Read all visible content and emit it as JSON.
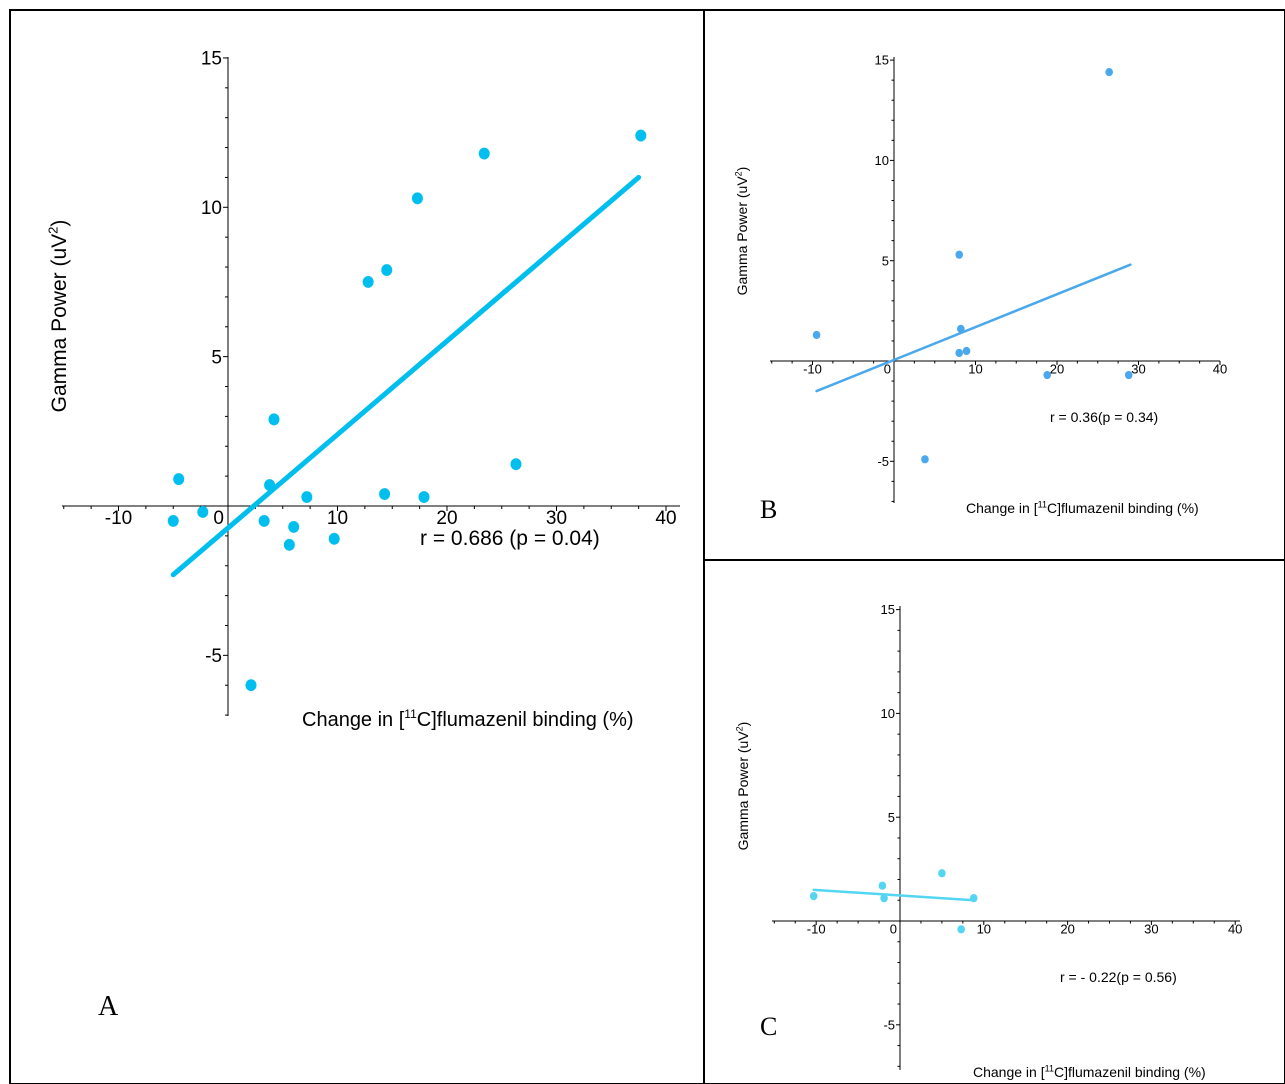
{
  "panels": {
    "a": {
      "label": "A"
    },
    "b": {
      "label": "B"
    },
    "c": {
      "label": "C"
    }
  },
  "chart_data": [
    {
      "panel": "A",
      "type": "scatter",
      "xlabel": "Change in [11C]flumazenil binding (%)",
      "ylabel": "Gamma Power (uV2)",
      "x_ticks": [
        -10,
        0,
        10,
        20,
        30,
        40
      ],
      "y_ticks": [
        -5,
        0,
        5,
        10,
        15
      ],
      "xlim": [
        -15,
        40
      ],
      "ylim": [
        -7,
        15
      ],
      "color": "#00bfef",
      "points": [
        {
          "x": -5,
          "y": -0.5
        },
        {
          "x": -4.5,
          "y": 0.9
        },
        {
          "x": -2.3,
          "y": -0.2
        },
        {
          "x": 2.1,
          "y": -6.0
        },
        {
          "x": 3.3,
          "y": -0.5
        },
        {
          "x": 3.8,
          "y": 0.7
        },
        {
          "x": 4.2,
          "y": 2.9
        },
        {
          "x": 5.6,
          "y": -1.3
        },
        {
          "x": 6.0,
          "y": -0.7
        },
        {
          "x": 7.2,
          "y": 0.3
        },
        {
          "x": 9.7,
          "y": -1.1
        },
        {
          "x": 12.8,
          "y": 7.5
        },
        {
          "x": 14.3,
          "y": 0.4
        },
        {
          "x": 14.5,
          "y": 7.9
        },
        {
          "x": 17.3,
          "y": 10.3
        },
        {
          "x": 17.9,
          "y": 0.3
        },
        {
          "x": 23.4,
          "y": 11.8
        },
        {
          "x": 26.3,
          "y": 1.4
        },
        {
          "x": 37.7,
          "y": 12.4
        }
      ],
      "fit": {
        "x1": -5,
        "y1": -2.3,
        "x2": 37.5,
        "y2": 11.0
      },
      "annotation": "r = 0.686 (p = 0.04)"
    },
    {
      "panel": "B",
      "type": "scatter",
      "xlabel": "Change in [11C]flumazenil binding (%)",
      "ylabel": "Gamma Power (uV2)",
      "x_ticks": [
        -10,
        0,
        10,
        20,
        30,
        40
      ],
      "y_ticks": [
        -5,
        0,
        5,
        10,
        15
      ],
      "xlim": [
        -15,
        40
      ],
      "ylim": [
        -7,
        15
      ],
      "color": "#4aa8ec",
      "points": [
        {
          "x": -9.5,
          "y": 1.3
        },
        {
          "x": 3.8,
          "y": -4.9
        },
        {
          "x": 8.0,
          "y": 5.3
        },
        {
          "x": 8.2,
          "y": 1.6
        },
        {
          "x": 8.0,
          "y": 0.4
        },
        {
          "x": 8.9,
          "y": 0.5
        },
        {
          "x": 18.8,
          "y": -0.7
        },
        {
          "x": 26.4,
          "y": 14.4
        },
        {
          "x": 28.8,
          "y": -0.7
        }
      ],
      "fit": {
        "x1": -9.5,
        "y1": -1.5,
        "x2": 29.0,
        "y2": 4.8
      },
      "annotation": "r = 0.36(p = 0.34)"
    },
    {
      "panel": "C",
      "type": "scatter",
      "xlabel": "Change in [11C]flumazenil binding (%)",
      "ylabel": "Gamma Power (uV2)",
      "x_ticks": [
        -10,
        0,
        10,
        20,
        30,
        40
      ],
      "y_ticks": [
        -5,
        0,
        5,
        10,
        15
      ],
      "xlim": [
        -15,
        40
      ],
      "ylim": [
        -7,
        15
      ],
      "color": "#54d6f3",
      "points": [
        {
          "x": -10.3,
          "y": 1.2
        },
        {
          "x": -2.1,
          "y": 1.7
        },
        {
          "x": -1.9,
          "y": 1.1
        },
        {
          "x": 5.0,
          "y": 2.3
        },
        {
          "x": 7.3,
          "y": -0.4
        },
        {
          "x": 8.8,
          "y": 1.1
        }
      ],
      "fit": {
        "x1": -10.3,
        "y1": 1.5,
        "x2": 8.8,
        "y2": 1.0
      },
      "annotation": "r =  - 0.22(p = 0.56)"
    }
  ]
}
